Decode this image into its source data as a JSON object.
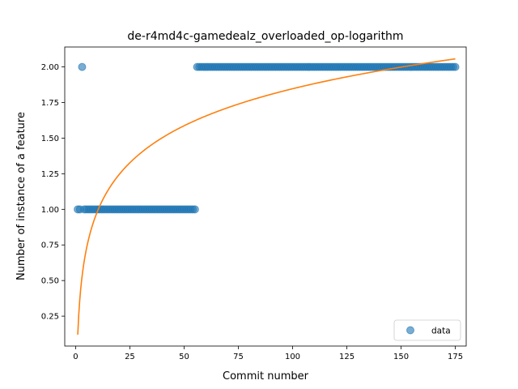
{
  "chart_data": {
    "type": "scatter",
    "title": "de-r4md4c-gamedealz_overloaded_op-logarithm",
    "xlabel": "Commit number",
    "ylabel": "Number of instance of a feature",
    "xlim": [
      -5,
      180
    ],
    "ylim": [
      0.04,
      2.14
    ],
    "xticks": [
      0,
      25,
      50,
      75,
      100,
      125,
      150,
      175
    ],
    "yticks": [
      0.25,
      0.5,
      0.75,
      1.0,
      1.25,
      1.5,
      1.75,
      2.0
    ],
    "xtick_labels": [
      "0",
      "25",
      "50",
      "75",
      "100",
      "125",
      "150",
      "175"
    ],
    "ytick_labels": [
      "0.25",
      "0.50",
      "0.75",
      "1.00",
      "1.25",
      "1.50",
      "1.75",
      "2.00"
    ],
    "grid": false,
    "legend_position": "lower-right",
    "series": [
      {
        "name": "data",
        "kind": "scatter",
        "color": "#1f77b4",
        "segments": [
          {
            "x_start": 1,
            "x_end": 2,
            "y": 1.0
          },
          {
            "x_start": 3,
            "x_end": 3,
            "y": 2.0
          },
          {
            "x_start": 4,
            "x_end": 55,
            "y": 1.0
          },
          {
            "x_start": 56,
            "x_end": 175,
            "y": 2.0
          }
        ]
      },
      {
        "kind": "line",
        "color": "#ff7f0e",
        "model": "logarithmic",
        "intercept": 0.12,
        "slope": 0.375,
        "x_range": [
          1,
          175
        ]
      }
    ]
  }
}
